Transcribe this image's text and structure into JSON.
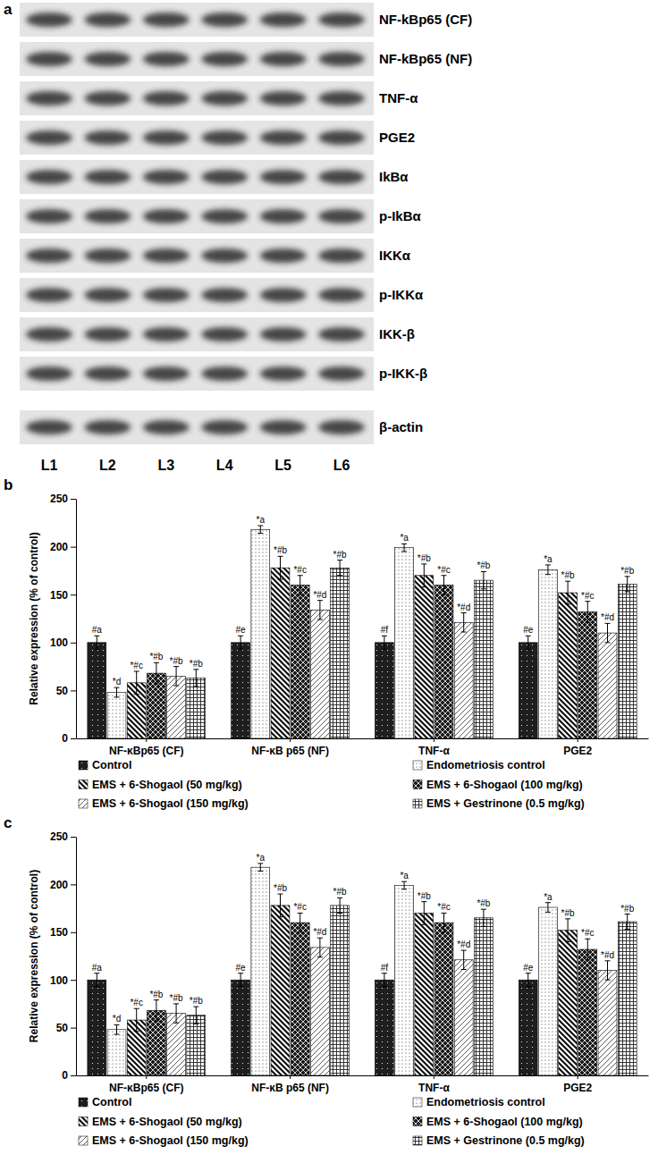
{
  "blot": {
    "panel_label": "a",
    "rows": [
      "NF-kBp65 (CF)",
      "NF-kBp65 (NF)",
      "TNF-α",
      "PGE2",
      "IkBα",
      "p-IkBα",
      "IKKα",
      "p-IKKα",
      "IKK-β",
      "p-IKK-β",
      "β-actin"
    ],
    "lanes": [
      "L1",
      "L2",
      "L3",
      "L4",
      "L5",
      "L6"
    ]
  },
  "chart_data": [
    {
      "type": "bar",
      "panel_label": "b",
      "y_label": "Relative expression (% of control)",
      "categories": [
        "NF-κBp65 (CF)",
        "NF-κB p65 (NF)",
        "TNF-α",
        "PGE2"
      ],
      "ylim": [
        0,
        250
      ],
      "yticks": [
        0,
        50,
        100,
        150,
        200,
        250
      ],
      "grid": false,
      "legend": "bottom",
      "series": [
        {
          "name": "Control",
          "color": "#1e1e1e",
          "values": [
            100,
            100,
            100,
            100
          ],
          "errors": [
            7,
            7,
            7,
            7
          ],
          "annotations": [
            "#a",
            "#e",
            "#f",
            "#e"
          ]
        },
        {
          "name": "Endometriosis control",
          "color": "#333333",
          "values": [
            48,
            218,
            199,
            176
          ],
          "errors": [
            5,
            4,
            4,
            5
          ],
          "annotations": [
            "*d",
            "*a",
            "*a",
            "*a"
          ]
        },
        {
          "name": "EMS + 6-Shogaol (50 mg/kg)",
          "color": "#111111",
          "values": [
            58,
            178,
            170,
            152
          ],
          "errors": [
            12,
            12,
            12,
            12
          ],
          "annotations": [
            "*#c",
            "*#b",
            "*#b",
            "*#b"
          ]
        },
        {
          "name": "EMS + 6-Shogaol (100 mg/kg)",
          "color": "#1a1a1a",
          "values": [
            68,
            160,
            160,
            132
          ],
          "errors": [
            11,
            10,
            10,
            11
          ],
          "annotations": [
            "*#b",
            "*#c",
            "*#c",
            "*#c"
          ]
        },
        {
          "name": "EMS + 6-Shogaol (150 mg/kg)",
          "color": "#333333",
          "values": [
            65,
            134,
            121,
            110
          ],
          "errors": [
            10,
            10,
            10,
            10
          ],
          "annotations": [
            "*#b",
            "*#d",
            "*#d",
            "*#d"
          ]
        },
        {
          "name": "EMS + Gestrinone (0.5 mg/kg)",
          "color": "#222222",
          "values": [
            63,
            178,
            165,
            161
          ],
          "errors": [
            9,
            8,
            9,
            8
          ],
          "annotations": [
            "*#b",
            "*#b",
            "*#b",
            "*#b"
          ]
        }
      ]
    },
    {
      "type": "bar",
      "panel_label": "c",
      "y_label": "Relative expression (% of control)",
      "categories": [
        "NF-κBp65 (CF)",
        "NF-κB p65 (NF)",
        "TNF-α",
        "PGE2"
      ],
      "ylim": [
        0,
        250
      ],
      "yticks": [
        0,
        50,
        100,
        150,
        200,
        250
      ],
      "grid": false,
      "legend": "bottom",
      "series": [
        {
          "name": "Control",
          "color": "#1e1e1e",
          "values": [
            100,
            100,
            100,
            100
          ],
          "errors": [
            7,
            7,
            7,
            7
          ],
          "annotations": [
            "#a",
            "#e",
            "#f",
            "#e"
          ]
        },
        {
          "name": "Endometriosis control",
          "color": "#333333",
          "values": [
            48,
            218,
            199,
            176
          ],
          "errors": [
            5,
            4,
            4,
            5
          ],
          "annotations": [
            "*d",
            "*a",
            "*a",
            "*a"
          ]
        },
        {
          "name": "EMS + 6-Shogaol (50 mg/kg)",
          "color": "#111111",
          "values": [
            58,
            178,
            170,
            152
          ],
          "errors": [
            12,
            12,
            12,
            12
          ],
          "annotations": [
            "*#c",
            "*#b",
            "*#b",
            "*#b"
          ]
        },
        {
          "name": "EMS + 6-Shogaol (100 mg/kg)",
          "color": "#1a1a1a",
          "values": [
            68,
            160,
            160,
            132
          ],
          "errors": [
            11,
            10,
            10,
            11
          ],
          "annotations": [
            "*#b",
            "*#c",
            "*#c",
            "*#c"
          ]
        },
        {
          "name": "EMS + 6-Shogaol (150 mg/kg)",
          "color": "#333333",
          "values": [
            65,
            134,
            121,
            110
          ],
          "errors": [
            10,
            10,
            10,
            10
          ],
          "annotations": [
            "*#b",
            "*#d",
            "*#d",
            "*#d"
          ]
        },
        {
          "name": "EMS + Gestrinone (0.5 mg/kg)",
          "color": "#222222",
          "values": [
            63,
            178,
            165,
            161
          ],
          "errors": [
            9,
            8,
            9,
            8
          ],
          "annotations": [
            "*#b",
            "*#b",
            "*#b",
            "*#b"
          ]
        }
      ]
    }
  ]
}
